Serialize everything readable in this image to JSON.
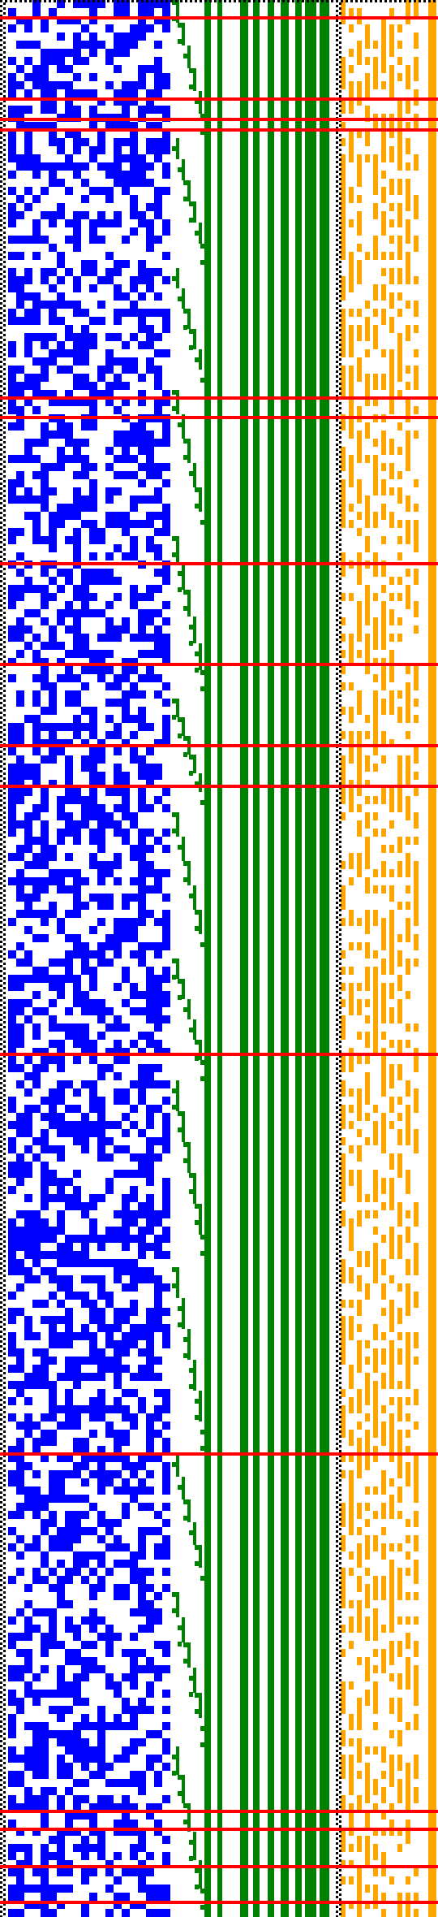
{
  "visualization": {
    "kind": "bit-pattern-grid",
    "colors": {
      "background": "#ffffff",
      "noise_block": "#0000ff",
      "staircase": "#008000",
      "right_block": "#ffa500",
      "marker_rows": "#ff0000",
      "borders": "#000000"
    },
    "panels": [
      {
        "name": "dotted-left-border",
        "color": "#000000"
      },
      {
        "name": "blue-noise-block",
        "color": "#0000ff"
      },
      {
        "name": "green-staircase",
        "color": "#008000"
      },
      {
        "name": "green-vertical-bars",
        "color": "#008000"
      },
      {
        "name": "dotted-separator",
        "color": "#000000"
      },
      {
        "name": "orange-noise-block",
        "color": "#ffa500"
      }
    ],
    "grid": {
      "rows": 236,
      "cols": 54
    },
    "marker_row_count": 17
  }
}
